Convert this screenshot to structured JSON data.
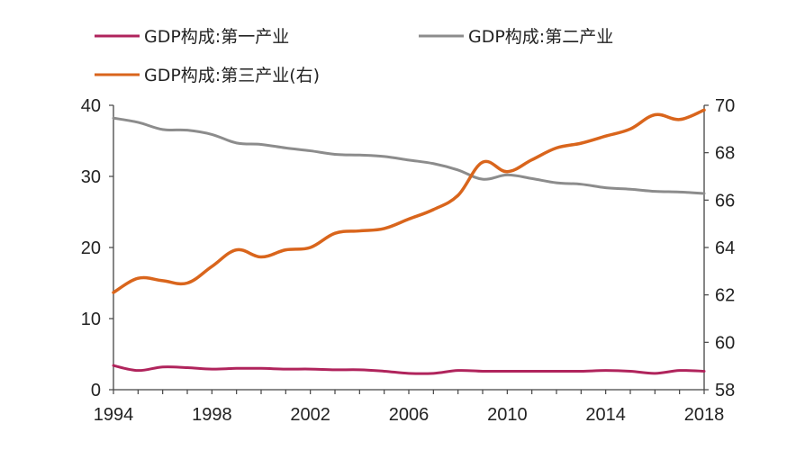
{
  "chart_data": {
    "type": "line",
    "x": [
      1994,
      1995,
      1996,
      1997,
      1998,
      1999,
      2000,
      2001,
      2002,
      2003,
      2004,
      2005,
      2006,
      2007,
      2008,
      2009,
      2010,
      2011,
      2012,
      2013,
      2014,
      2015,
      2016,
      2017,
      2018
    ],
    "series": [
      {
        "name": "GDP构成:第一产业",
        "axis": "left",
        "color": "#b0245c",
        "values": [
          3.4,
          2.7,
          3.2,
          3.1,
          2.9,
          3.0,
          3.0,
          2.9,
          2.9,
          2.8,
          2.8,
          2.6,
          2.3,
          2.3,
          2.7,
          2.6,
          2.6,
          2.6,
          2.6,
          2.6,
          2.7,
          2.6,
          2.3,
          2.7,
          2.6
        ]
      },
      {
        "name": "GDP构成:第二产业",
        "axis": "left",
        "color": "#8c8c8c",
        "values": [
          38.2,
          37.6,
          36.6,
          36.5,
          35.9,
          34.7,
          34.5,
          34.0,
          33.6,
          33.1,
          33.0,
          32.8,
          32.3,
          31.8,
          30.9,
          29.6,
          30.2,
          29.7,
          29.1,
          28.9,
          28.4,
          28.2,
          27.9,
          27.8,
          27.6
        ]
      },
      {
        "name": "GDP构成:第三产业(右)",
        "axis": "right",
        "color": "#d9651c",
        "values": [
          62.1,
          62.7,
          62.6,
          62.5,
          63.2,
          63.9,
          63.6,
          63.9,
          64.0,
          64.6,
          64.7,
          64.8,
          65.2,
          65.6,
          66.2,
          67.6,
          67.2,
          67.7,
          68.2,
          68.4,
          68.7,
          69.0,
          69.6,
          69.4,
          69.8
        ]
      }
    ],
    "y_left": {
      "lim": [
        0,
        40
      ],
      "ticks": [
        "0",
        "10",
        "20",
        "30",
        "40"
      ]
    },
    "y_right": {
      "lim": [
        58,
        70
      ],
      "ticks": [
        "58",
        "60",
        "62",
        "64",
        "66",
        "68",
        "70"
      ]
    },
    "x_ticks": [
      "1994",
      "1998",
      "2002",
      "2006",
      "2010",
      "2014",
      "2018"
    ],
    "legend_placement": "top",
    "grid": false
  }
}
